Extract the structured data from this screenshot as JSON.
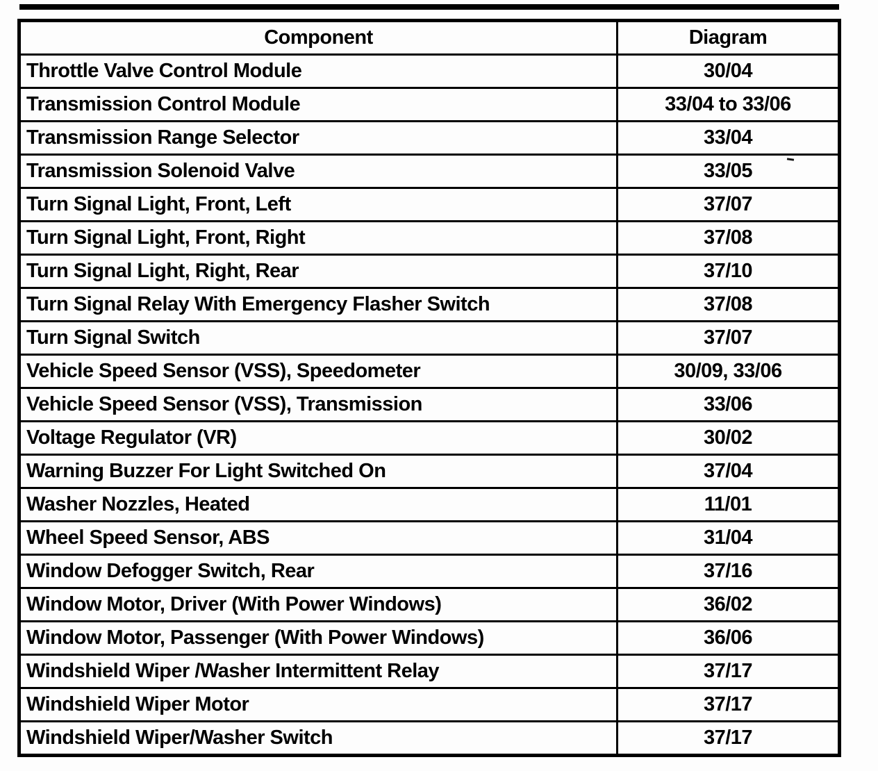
{
  "table": {
    "headers": [
      "Component",
      "Diagram"
    ],
    "rows": [
      [
        "Throttle Valve Control Module",
        "30/04"
      ],
      [
        "Transmission Control Module",
        "33/04 to 33/06"
      ],
      [
        "Transmission Range Selector",
        "33/04"
      ],
      [
        "Transmission Solenoid Valve",
        "33/05"
      ],
      [
        "Turn Signal Light, Front, Left",
        "37/07"
      ],
      [
        "Turn Signal Light, Front, Right",
        "37/08"
      ],
      [
        "Turn Signal Light, Right, Rear",
        "37/10"
      ],
      [
        "Turn Signal Relay With Emergency Flasher Switch",
        "37/08"
      ],
      [
        "Turn Signal Switch",
        "37/07"
      ],
      [
        "Vehicle Speed Sensor (VSS), Speedometer",
        "30/09, 33/06"
      ],
      [
        "Vehicle Speed Sensor (VSS), Transmission",
        "33/06"
      ],
      [
        "Voltage Regulator (VR)",
        "30/02"
      ],
      [
        "Warning Buzzer For Light Switched On",
        "37/04"
      ],
      [
        "Washer Nozzles, Heated",
        "11/01"
      ],
      [
        "Wheel Speed Sensor, ABS",
        "31/04"
      ],
      [
        "Window Defogger Switch, Rear",
        "37/16"
      ],
      [
        "Window Motor, Driver (With Power Windows)",
        "36/02"
      ],
      [
        "Window Motor, Passenger (With Power Windows)",
        "36/06"
      ],
      [
        "Windshield Wiper /Washer Intermittent Relay",
        "37/17"
      ],
      [
        "Windshield Wiper Motor",
        "37/17"
      ],
      [
        "Windshield Wiper/Washer Switch",
        "37/17"
      ]
    ]
  }
}
